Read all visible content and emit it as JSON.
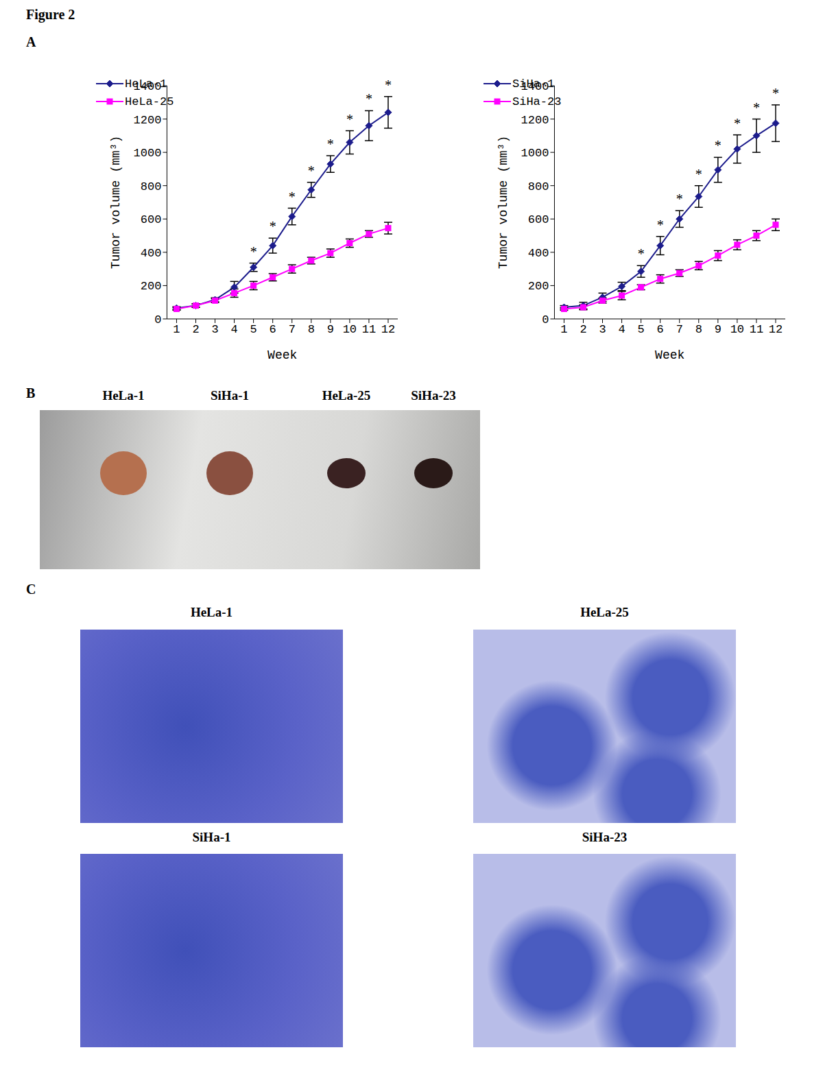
{
  "figure_title": "Figure 2",
  "panel_labels": [
    "A",
    "B",
    "C"
  ],
  "chart_data": [
    {
      "type": "line",
      "ylabel": "Tumor volume (mm³)",
      "xlabel": "Week",
      "x": [
        1,
        2,
        3,
        4,
        5,
        6,
        7,
        8,
        9,
        10,
        11,
        12
      ],
      "xlim": [
        0.5,
        12.5
      ],
      "xticks": [
        1,
        2,
        3,
        4,
        5,
        6,
        7,
        8,
        9,
        10,
        11,
        12
      ],
      "ylim": [
        0,
        1400
      ],
      "yticks": [
        0,
        200,
        400,
        600,
        800,
        1000,
        1200,
        1400
      ],
      "grid": false,
      "legend": "upper left",
      "series": [
        {
          "name": "HeLa-1",
          "color": "#1c1c8c",
          "marker": "diamond",
          "values": [
            65,
            80,
            115,
            190,
            310,
            440,
            615,
            775,
            930,
            1060,
            1160,
            1240
          ],
          "errors": [
            8,
            10,
            12,
            35,
            25,
            45,
            50,
            45,
            50,
            70,
            90,
            95
          ]
        },
        {
          "name": "HeLa-25",
          "color": "#ff00ff",
          "marker": "square",
          "values": [
            60,
            80,
            110,
            155,
            200,
            250,
            300,
            350,
            395,
            455,
            510,
            545
          ],
          "errors": [
            8,
            10,
            12,
            25,
            25,
            22,
            25,
            20,
            25,
            25,
            20,
            35
          ]
        }
      ],
      "annotations": [
        {
          "x": 5,
          "text": "*"
        },
        {
          "x": 6,
          "text": "*"
        },
        {
          "x": 7,
          "text": "*"
        },
        {
          "x": 8,
          "text": "*"
        },
        {
          "x": 9,
          "text": "*"
        },
        {
          "x": 10,
          "text": "*"
        },
        {
          "x": 11,
          "text": "*"
        },
        {
          "x": 12,
          "text": "*"
        }
      ]
    },
    {
      "type": "line",
      "ylabel": "Tumor volume (mm³)",
      "xlabel": "Week",
      "x": [
        1,
        2,
        3,
        4,
        5,
        6,
        7,
        8,
        9,
        10,
        11,
        12
      ],
      "xlim": [
        0.5,
        12.5
      ],
      "xticks": [
        1,
        2,
        3,
        4,
        5,
        6,
        7,
        8,
        9,
        10,
        11,
        12
      ],
      "ylim": [
        0,
        1400
      ],
      "yticks": [
        0,
        200,
        400,
        600,
        800,
        1000,
        1200,
        1400
      ],
      "grid": false,
      "legend": "upper left",
      "series": [
        {
          "name": "SiHa-1",
          "color": "#1c1c8c",
          "marker": "diamond",
          "values": [
            70,
            80,
            130,
            195,
            285,
            440,
            600,
            735,
            895,
            1020,
            1100,
            1175
          ],
          "errors": [
            10,
            20,
            25,
            25,
            35,
            55,
            50,
            65,
            75,
            85,
            100,
            110
          ]
        },
        {
          "name": "SiHa-23",
          "color": "#ff00ff",
          "marker": "square",
          "values": [
            60,
            70,
            110,
            140,
            190,
            240,
            275,
            320,
            380,
            445,
            500,
            565
          ],
          "errors": [
            8,
            15,
            15,
            25,
            15,
            25,
            20,
            25,
            30,
            30,
            30,
            35
          ]
        }
      ],
      "annotations": [
        {
          "x": 5,
          "text": "*"
        },
        {
          "x": 6,
          "text": "*"
        },
        {
          "x": 7,
          "text": "*"
        },
        {
          "x": 8,
          "text": "*"
        },
        {
          "x": 9,
          "text": "*"
        },
        {
          "x": 10,
          "text": "*"
        },
        {
          "x": 11,
          "text": "*"
        },
        {
          "x": 12,
          "text": "*"
        }
      ]
    }
  ],
  "photo_labels": [
    "HeLa-1",
    "SiHa-1",
    "HeLa-25",
    "SiHa-23"
  ],
  "histology_labels": [
    "HeLa-1",
    "HeLa-25",
    "SiHa-1",
    "SiHa-23"
  ]
}
